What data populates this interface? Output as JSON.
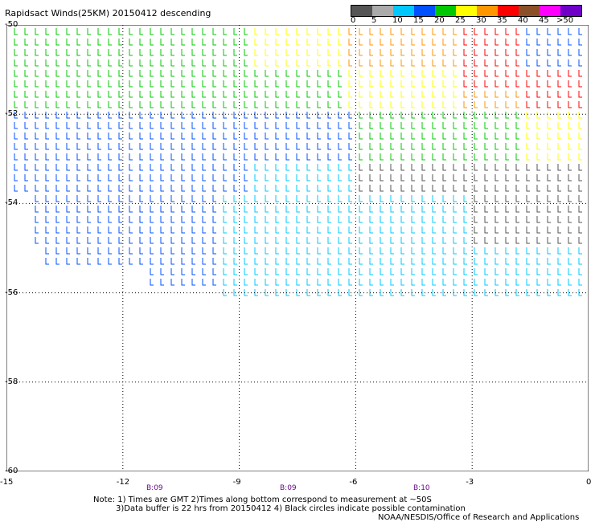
{
  "title": "Rapidsact Winds(25KM) 20150412 descending",
  "legend": {
    "colors": [
      "#555555",
      "#aaaaaa",
      "#00c8ff",
      "#0050ff",
      "#00c800",
      "#ffff00",
      "#ff9600",
      "#ff0000",
      "#8c5028",
      "#ff00ff",
      "#6e00c8"
    ],
    "labels": [
      "0",
      "5",
      "10",
      "15",
      "20",
      "25",
      "30",
      "35",
      "40",
      "45",
      ">50 knots"
    ]
  },
  "map": {
    "lat_labels": [
      "-50",
      "-52",
      "-54",
      "-56",
      "-58",
      "-60"
    ],
    "lon_labels": [
      "-15",
      "-12",
      "-9",
      "-6",
      "-3",
      "0"
    ],
    "time_labels": [
      "B:09",
      "B:09",
      "B:10"
    ],
    "lat_range": [
      -60,
      -50
    ],
    "lon_range": [
      -15,
      0
    ],
    "grid": true
  },
  "notes": {
    "line1": "Note: 1) Times are GMT 2)Times along bottom correspond to measurement at ~50S",
    "line2": "3)Data buffer is 22 hrs from 20150412 4) Black circles indicate possible contamination",
    "credit": "NOAA/NESDIS/Office of Research and Applications"
  }
}
